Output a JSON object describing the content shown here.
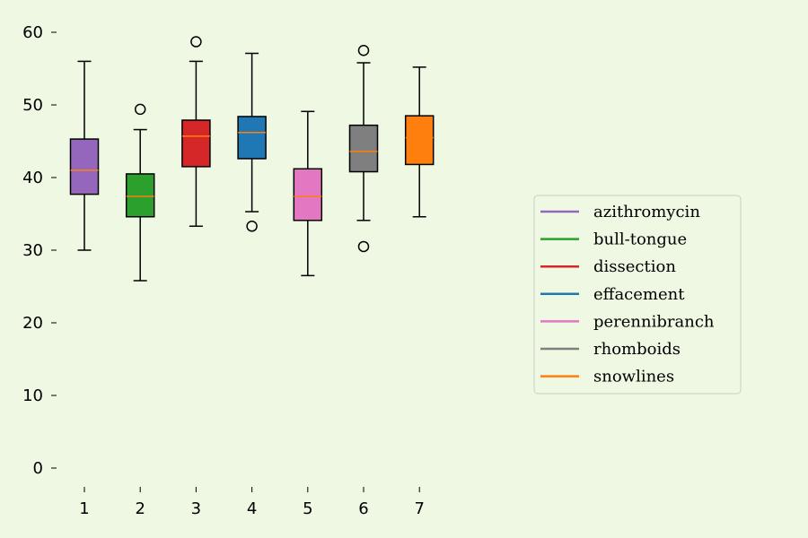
{
  "chart_data": {
    "type": "box",
    "title": "",
    "xlabel": "",
    "ylabel": "",
    "ylim": [
      0,
      60
    ],
    "yticks": [
      0,
      10,
      20,
      30,
      40,
      50,
      60
    ],
    "categories": [
      "1",
      "2",
      "3",
      "4",
      "5",
      "6",
      "7"
    ],
    "grid": false,
    "legend_position": "center-right",
    "median_color": "#ff7f0e",
    "series": [
      {
        "name": "azithromycin",
        "color": "#9467bd",
        "whisker_low": 30.0,
        "q1": 37.7,
        "median": 41.0,
        "q3": 45.3,
        "whisker_high": 56.0,
        "outliers": []
      },
      {
        "name": "bull-tongue",
        "color": "#2ca02c",
        "whisker_low": 25.8,
        "q1": 34.6,
        "median": 37.4,
        "q3": 40.5,
        "whisker_high": 46.6,
        "outliers": [
          49.4
        ]
      },
      {
        "name": "dissection",
        "color": "#d62728",
        "whisker_low": 33.3,
        "q1": 41.5,
        "median": 45.7,
        "q3": 47.9,
        "whisker_high": 56.0,
        "outliers": [
          58.7
        ]
      },
      {
        "name": "effacement",
        "color": "#1f77b4",
        "whisker_low": 35.3,
        "q1": 42.6,
        "median": 46.2,
        "q3": 48.4,
        "whisker_high": 57.1,
        "outliers": [
          33.3
        ]
      },
      {
        "name": "perennibranch",
        "color": "#e377c2",
        "whisker_low": 26.5,
        "q1": 34.1,
        "median": 37.4,
        "q3": 41.2,
        "whisker_high": 49.1,
        "outliers": []
      },
      {
        "name": "rhomboids",
        "color": "#7f7f7f",
        "whisker_low": 34.1,
        "q1": 40.8,
        "median": 43.6,
        "q3": 47.2,
        "whisker_high": 55.8,
        "outliers": [
          57.5,
          30.5
        ]
      },
      {
        "name": "snowlines",
        "color": "#ff7f0e",
        "whisker_low": 34.6,
        "q1": 41.8,
        "median": 45.5,
        "q3": 48.5,
        "whisker_high": 55.2,
        "outliers": []
      }
    ]
  }
}
